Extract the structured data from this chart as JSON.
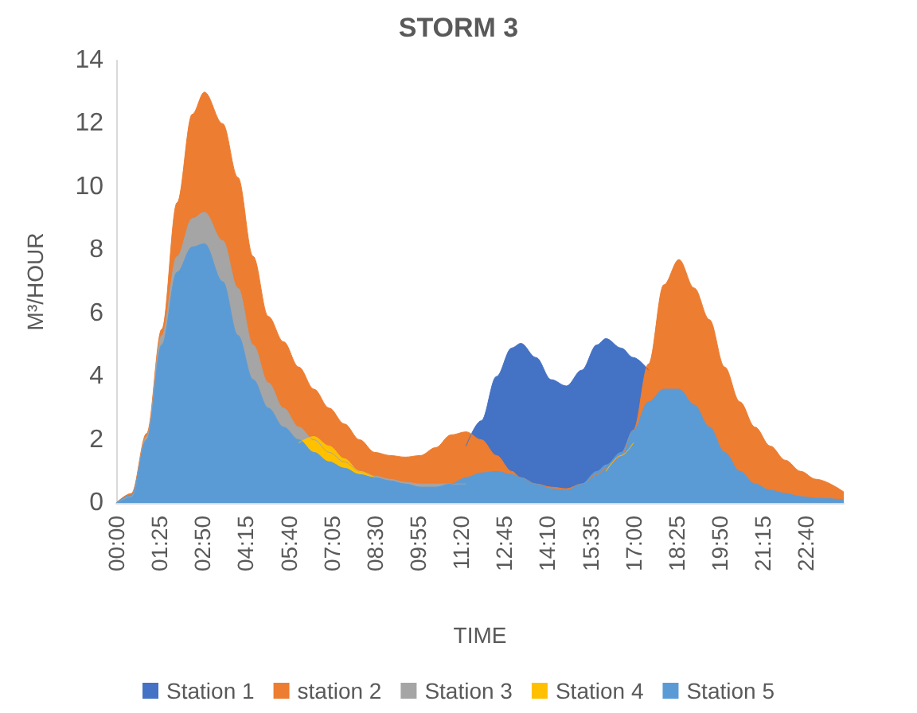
{
  "chart_data": {
    "type": "area",
    "title": "STORM 3",
    "xlabel": "TIME",
    "ylabel": "M³/HOUR",
    "x": [
      0,
      0.5,
      1,
      1.5,
      2,
      2.5,
      2.9,
      3.5,
      4,
      4.5,
      5,
      5.5,
      6,
      6.5,
      7,
      7.5,
      8,
      8.5,
      9,
      9.5,
      10,
      10.5,
      11,
      11.5,
      12,
      12.5,
      13,
      13.3,
      13.8,
      14.3,
      14.8,
      15.3,
      15.8,
      16.1,
      16.6,
      17,
      17.5,
      18,
      18.5,
      19,
      19.5,
      20,
      20.5,
      21,
      21.5,
      22,
      22.5,
      23,
      23.917
    ],
    "series": [
      {
        "name": "Station 1",
        "color": "#4472c4",
        "values": [
          null,
          null,
          null,
          null,
          null,
          null,
          null,
          null,
          null,
          null,
          null,
          null,
          null,
          null,
          null,
          null,
          null,
          null,
          null,
          null,
          null,
          null,
          null,
          1.8,
          2.6,
          4.0,
          4.9,
          5.05,
          4.6,
          3.9,
          3.7,
          4.2,
          5.0,
          5.2,
          4.9,
          4.6,
          4.2,
          null,
          null,
          null,
          null,
          null,
          null,
          null,
          null,
          null,
          null,
          null,
          null
        ]
      },
      {
        "name": "station 2",
        "color": "#ed7d31",
        "values": [
          0,
          0.3,
          2.2,
          5.5,
          9.5,
          12.3,
          13.0,
          12.0,
          10.3,
          7.8,
          5.9,
          5.1,
          4.3,
          3.6,
          3.0,
          2.5,
          2.0,
          1.6,
          1.5,
          1.45,
          1.5,
          1.75,
          2.15,
          2.25,
          2.0,
          1.5,
          1.0,
          0.8,
          0.6,
          0.5,
          0.45,
          0.6,
          0.9,
          1.1,
          1.5,
          2.3,
          4.4,
          6.9,
          7.7,
          6.8,
          5.8,
          4.3,
          3.2,
          2.4,
          1.8,
          1.35,
          1.0,
          0.75,
          0.35
        ]
      },
      {
        "name": "Station 3",
        "color": "#a5a5a5",
        "values": [
          0,
          0.2,
          2.1,
          5.3,
          7.8,
          9.0,
          9.2,
          8.3,
          6.8,
          5.0,
          3.8,
          3.0,
          2.4,
          2.0,
          1.6,
          1.3,
          1.0,
          0.85,
          0.75,
          0.65,
          0.6,
          0.6,
          0.6,
          0.6,
          null,
          null,
          null,
          null,
          null,
          null,
          null,
          null,
          null,
          null,
          null,
          null,
          null,
          null,
          null,
          null,
          null,
          null,
          null,
          null,
          null,
          null,
          null,
          null,
          null
        ]
      },
      {
        "name": "Station 4",
        "color": "#ffc000",
        "values": [
          null,
          null,
          null,
          null,
          null,
          null,
          null,
          null,
          null,
          null,
          null,
          null,
          1.9,
          2.1,
          1.8,
          1.4,
          1.0,
          0.8,
          null,
          null,
          null,
          null,
          null,
          null,
          null,
          null,
          null,
          null,
          null,
          null,
          null,
          null,
          null,
          1.0,
          1.5,
          1.9,
          null,
          null,
          null,
          null,
          null,
          null,
          null,
          null,
          null,
          null,
          null,
          null,
          null
        ]
      },
      {
        "name": "Station 5",
        "color": "#5b9bd5",
        "values": [
          0,
          0.25,
          2.0,
          5.0,
          7.3,
          8.1,
          8.2,
          7.0,
          5.3,
          3.9,
          3.0,
          2.4,
          2.0,
          1.6,
          1.3,
          1.1,
          0.9,
          0.8,
          0.7,
          0.6,
          0.5,
          0.5,
          0.6,
          0.8,
          0.95,
          1.0,
          0.9,
          0.8,
          0.6,
          0.45,
          0.4,
          0.6,
          1.0,
          1.2,
          1.6,
          2.3,
          3.2,
          3.6,
          3.6,
          3.1,
          2.4,
          1.6,
          1.0,
          0.6,
          0.4,
          0.3,
          0.2,
          0.15,
          0.1
        ]
      }
    ],
    "xlim": [
      0,
      23.917
    ],
    "xticks": [
      {
        "value": 0,
        "label": "00:00"
      },
      {
        "value": 1.4167,
        "label": "01:25"
      },
      {
        "value": 2.8333,
        "label": "02:50"
      },
      {
        "value": 4.25,
        "label": "04:15"
      },
      {
        "value": 5.6667,
        "label": "05:40"
      },
      {
        "value": 7.0833,
        "label": "07:05"
      },
      {
        "value": 8.5,
        "label": "08:30"
      },
      {
        "value": 9.9167,
        "label": "09:55"
      },
      {
        "value": 11.3333,
        "label": "11:20"
      },
      {
        "value": 12.75,
        "label": "12:45"
      },
      {
        "value": 14.1667,
        "label": "14:10"
      },
      {
        "value": 15.5833,
        "label": "15:35"
      },
      {
        "value": 17,
        "label": "17:00"
      },
      {
        "value": 18.4167,
        "label": "18:25"
      },
      {
        "value": 19.8333,
        "label": "19:50"
      },
      {
        "value": 21.25,
        "label": "21:15"
      },
      {
        "value": 22.6667,
        "label": "22:40"
      }
    ],
    "ylim": [
      0,
      14
    ],
    "yticks": [
      0,
      2,
      4,
      6,
      8,
      10,
      12,
      14
    ],
    "grid": false,
    "legend": "bottom",
    "marker": "none"
  }
}
